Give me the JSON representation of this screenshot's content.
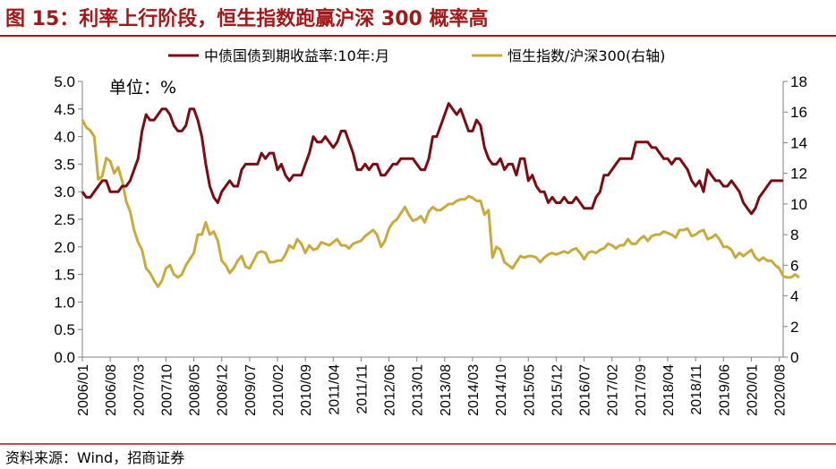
{
  "colors": {
    "accent": "#a11a1a",
    "series1": "#7a0c14",
    "series2": "#c8ab3c",
    "axis": "#808080"
  },
  "chart_data": {
    "type": "line",
    "title": "图 15：利率上行阶段，恒生指数跑赢沪深 300 概率高",
    "unit_label": "单位：%",
    "source": "资料来源：Wind，招商证券",
    "y_left": {
      "min": 0,
      "max": 5,
      "ticks": [
        "0.0",
        "0.5",
        "1.0",
        "1.5",
        "2.0",
        "2.5",
        "3.0",
        "3.5",
        "4.0",
        "4.5",
        "5.0"
      ]
    },
    "y_right": {
      "min": 0,
      "max": 18,
      "ticks": [
        "0",
        "2",
        "4",
        "6",
        "8",
        "10",
        "12",
        "14",
        "16",
        "18"
      ]
    },
    "x_tick_labels": [
      "2006/01",
      "2006/08",
      "2007/03",
      "2007/10",
      "2008/05",
      "2008/12",
      "2009/07",
      "2010/02",
      "2010/09",
      "2011/04",
      "2011/11",
      "2012/06",
      "2013/01",
      "2013/08",
      "2014/03",
      "2014/10",
      "2015/05",
      "2015/12",
      "2016/07",
      "2017/02",
      "2017/09",
      "2018/04",
      "2018/11",
      "2019/06",
      "2020/01",
      "2020/08"
    ],
    "x_start": "2006/01",
    "x_tick_step_months": 7,
    "series": [
      {
        "name": "中债国债到期收益率:10年:月",
        "axis": "left",
        "values": [
          3.0,
          2.9,
          2.9,
          3.0,
          3.1,
          3.2,
          3.2,
          3.0,
          3.0,
          3.0,
          3.1,
          3.1,
          3.2,
          3.4,
          3.6,
          4.1,
          4.4,
          4.3,
          4.3,
          4.4,
          4.5,
          4.5,
          4.4,
          4.2,
          4.1,
          4.1,
          4.2,
          4.5,
          4.5,
          4.3,
          4.0,
          3.5,
          3.1,
          2.9,
          2.8,
          3.0,
          3.1,
          3.2,
          3.1,
          3.1,
          3.4,
          3.5,
          3.5,
          3.5,
          3.5,
          3.7,
          3.6,
          3.7,
          3.7,
          3.4,
          3.5,
          3.3,
          3.2,
          3.3,
          3.3,
          3.3,
          3.5,
          3.7,
          4.0,
          3.9,
          3.9,
          4.0,
          3.9,
          3.8,
          3.9,
          4.1,
          4.1,
          3.9,
          3.7,
          3.4,
          3.4,
          3.5,
          3.4,
          3.5,
          3.5,
          3.3,
          3.3,
          3.4,
          3.5,
          3.5,
          3.6,
          3.6,
          3.6,
          3.6,
          3.5,
          3.4,
          3.4,
          3.6,
          4.0,
          4.0,
          4.2,
          4.4,
          4.6,
          4.5,
          4.4,
          4.5,
          4.3,
          4.1,
          4.1,
          4.3,
          4.2,
          3.8,
          3.6,
          3.5,
          3.5,
          3.6,
          3.4,
          3.5,
          3.5,
          3.3,
          3.6,
          3.6,
          3.2,
          3.3,
          3.1,
          3.0,
          3.0,
          2.8,
          2.9,
          2.8,
          2.8,
          2.9,
          2.8,
          2.8,
          2.9,
          2.8,
          2.7,
          2.7,
          2.7,
          2.9,
          3.0,
          3.3,
          3.3,
          3.4,
          3.5,
          3.6,
          3.6,
          3.6,
          3.6,
          3.9,
          3.9,
          3.9,
          3.9,
          3.8,
          3.8,
          3.7,
          3.6,
          3.6,
          3.5,
          3.6,
          3.6,
          3.5,
          3.4,
          3.2,
          3.1,
          3.2,
          3.0,
          3.4,
          3.3,
          3.2,
          3.2,
          3.1,
          3.1,
          3.2,
          3.1,
          3.0,
          2.8,
          2.7,
          2.6,
          2.7,
          2.9,
          3.0,
          3.1,
          3.2,
          3.2,
          3.2,
          3.2
        ]
      },
      {
        "name": "恒生指数/沪深300(右轴)",
        "axis": "right",
        "values": [
          15.5,
          15.0,
          14.8,
          14.4,
          11.6,
          11.8,
          13.0,
          12.8,
          12.0,
          12.4,
          11.5,
          10.2,
          9.5,
          8.3,
          7.5,
          7.0,
          5.8,
          5.5,
          5.0,
          4.6,
          5.0,
          5.8,
          6.0,
          5.4,
          5.2,
          5.4,
          6.0,
          6.4,
          6.8,
          8.0,
          8.0,
          8.8,
          8.0,
          8.2,
          7.6,
          6.3,
          6.0,
          5.5,
          5.8,
          6.3,
          6.6,
          5.9,
          5.8,
          6.3,
          6.8,
          6.9,
          6.8,
          6.2,
          6.2,
          6.3,
          6.3,
          6.7,
          7.3,
          7.1,
          7.7,
          7.4,
          6.8,
          7.3,
          7.0,
          7.1,
          7.5,
          7.4,
          7.3,
          7.5,
          7.7,
          7.3,
          7.3,
          7.1,
          7.4,
          7.5,
          7.6,
          7.9,
          8.1,
          8.3,
          8.0,
          7.2,
          7.6,
          8.4,
          8.8,
          9.0,
          9.4,
          9.8,
          9.3,
          8.9,
          9.0,
          9.2,
          8.8,
          9.5,
          9.8,
          9.6,
          9.6,
          9.8,
          10.0,
          10.0,
          10.2,
          10.3,
          10.3,
          10.5,
          10.4,
          10.2,
          10.2,
          9.3,
          9.6,
          6.5,
          7.2,
          7.0,
          6.2,
          6.0,
          5.8,
          6.2,
          6.6,
          6.5,
          6.6,
          6.6,
          6.5,
          6.2,
          6.5,
          6.7,
          6.8,
          6.7,
          6.8,
          6.9,
          6.8,
          7.0,
          7.1,
          6.8,
          6.4,
          6.8,
          6.9,
          6.8,
          7.0,
          7.1,
          7.4,
          7.3,
          7.1,
          7.3,
          7.3,
          7.7,
          7.4,
          7.4,
          7.7,
          7.9,
          7.6,
          7.9,
          8.0,
          8.0,
          8.2,
          8.1,
          8.0,
          7.8,
          8.3,
          8.3,
          8.4,
          7.9,
          8.0,
          8.2,
          8.3,
          7.7,
          7.8,
          8.0,
          7.7,
          7.2,
          7.2,
          7.0,
          6.5,
          6.8,
          6.6,
          6.8,
          7.0,
          6.5,
          6.3,
          6.5,
          6.3,
          6.3,
          6.0,
          5.8,
          5.3,
          5.2,
          5.2,
          5.4,
          5.2
        ]
      }
    ]
  }
}
